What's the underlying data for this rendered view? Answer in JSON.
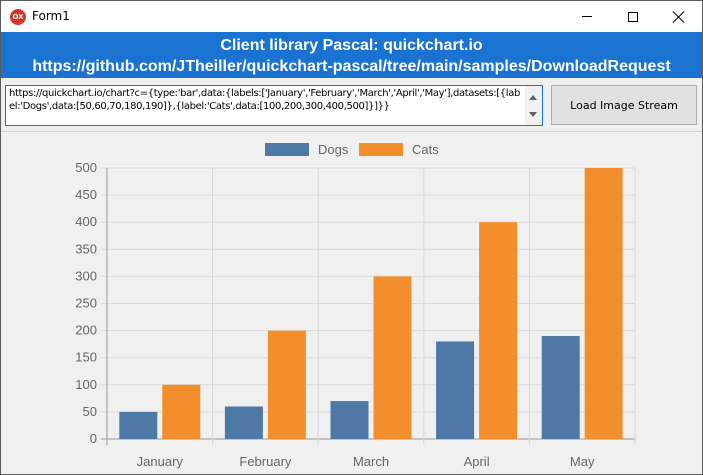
{
  "window": {
    "title": "Form1",
    "icon_label": "OX"
  },
  "banner": {
    "line1": "Client library Pascal: quickchart.io",
    "line2": "https://github.com/JTheiller/quickchart-pascal/tree/main/samples/DownloadRequest"
  },
  "request": {
    "url": "https://quickchart.io/chart?c={type:'bar',data:{labels:['January','February','March','April','May'],datasets:[{label:'Dogs',data:[50,60,70,180,190]},{label:'Cats',data:[100,200,300,400,500]}]}}",
    "button_label": "Load Image Stream"
  },
  "chart_data": {
    "type": "bar",
    "categories": [
      "January",
      "February",
      "March",
      "April",
      "May"
    ],
    "series": [
      {
        "name": "Dogs",
        "values": [
          50,
          60,
          70,
          180,
          190
        ],
        "color": "#4e79a7"
      },
      {
        "name": "Cats",
        "values": [
          100,
          200,
          300,
          400,
          500
        ],
        "color": "#f28e2b"
      }
    ],
    "ylim": [
      0,
      500
    ],
    "yticks": [
      0,
      50,
      100,
      150,
      200,
      250,
      300,
      350,
      400,
      450,
      500
    ],
    "grid": true,
    "legend": "top-center"
  }
}
